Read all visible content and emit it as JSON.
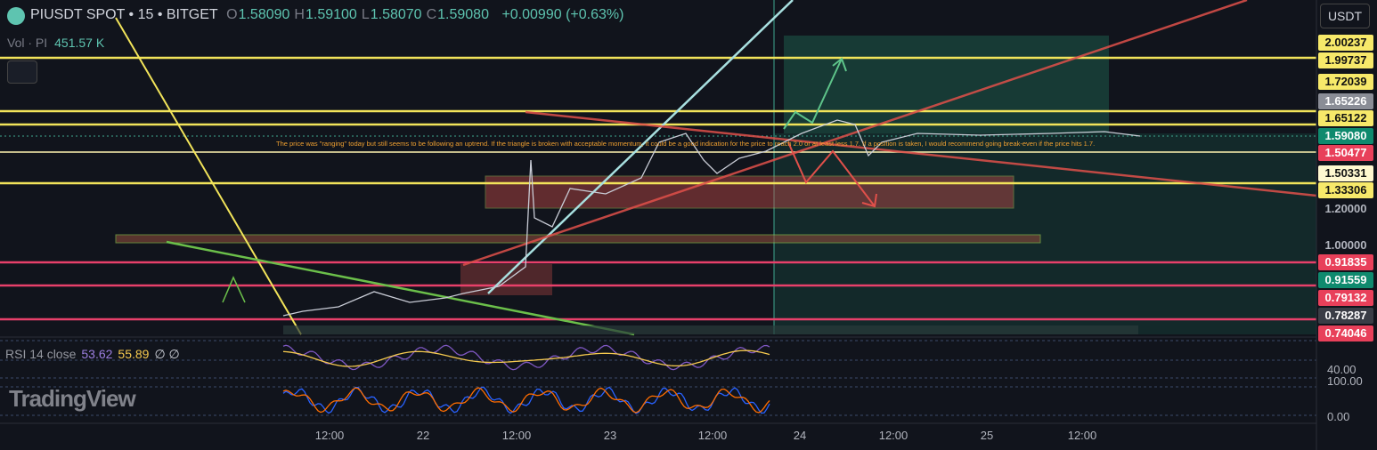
{
  "header": {
    "symbol": "PIUSDT SPOT • 15 • BITGET",
    "ohlc": [
      {
        "letter": "O",
        "value": "1.58090"
      },
      {
        "letter": "H",
        "value": "1.59100"
      },
      {
        "letter": "L",
        "value": "1.58070"
      },
      {
        "letter": "C",
        "value": "1.59080"
      }
    ],
    "change": "+0.00990 (+0.63%)"
  },
  "volume": {
    "label": "Vol · PI",
    "value": "451.57 K"
  },
  "unit": "USDT",
  "annotation": "The price was \"ranging\" today but still seems to be following an uptrend. If the triangle is broken with acceptable momentum, it could be a good indication for the price to reach 2.0 or at least less 1.7. If a position is taken, I would recommend going break-even if the price hits 1.7.",
  "price_labels": [
    {
      "label": "2.00237",
      "bg": "#f7e96a",
      "fg": "#111"
    },
    {
      "label": "1.99737",
      "bg": "#f7e96a",
      "fg": "#111"
    },
    {
      "label": "1.72039",
      "bg": "#f7e96a",
      "fg": "#111"
    },
    {
      "label": "1.65226",
      "bg": "#8a8d96",
      "fg": "#fff"
    },
    {
      "label": "1.65122",
      "bg": "#f7e96a",
      "fg": "#111"
    },
    {
      "label": "1.59080",
      "bg": "#0f8a6e",
      "fg": "#fff"
    },
    {
      "label": "1.50477",
      "bg": "#e8405a",
      "fg": "#fff"
    },
    {
      "label": "1.50331",
      "bg": "#fff8d0",
      "fg": "#111"
    },
    {
      "label": "1.33306",
      "bg": "#f7e96a",
      "fg": "#111"
    },
    {
      "label": "1.20000",
      "bg": "transparent",
      "fg": "#b2b5be"
    },
    {
      "label": "1.00000",
      "bg": "transparent",
      "fg": "#b2b5be"
    },
    {
      "label": "0.91835",
      "bg": "#e8405a",
      "fg": "#fff"
    },
    {
      "label": "0.91559",
      "bg": "#0f8a6e",
      "fg": "#fff"
    },
    {
      "label": "0.79132",
      "bg": "#e8405a",
      "fg": "#fff"
    },
    {
      "label": "0.78287",
      "bg": "#3a3d46",
      "fg": "#fff"
    },
    {
      "label": "0.74046",
      "bg": "#e8405a",
      "fg": "#fff"
    }
  ],
  "rsi": {
    "label": "RSI 14 close",
    "value": "53.62",
    "ma": "55.89",
    "extra": "∅ ∅",
    "level": "40.00"
  },
  "stoch": {
    "levels": [
      "100.00",
      "0.00"
    ]
  },
  "watermark": "TradingView",
  "time_labels": [
    "12:00",
    "22",
    "12:00",
    "23",
    "12:00",
    "24",
    "12:00",
    "25",
    "12:00"
  ]
}
